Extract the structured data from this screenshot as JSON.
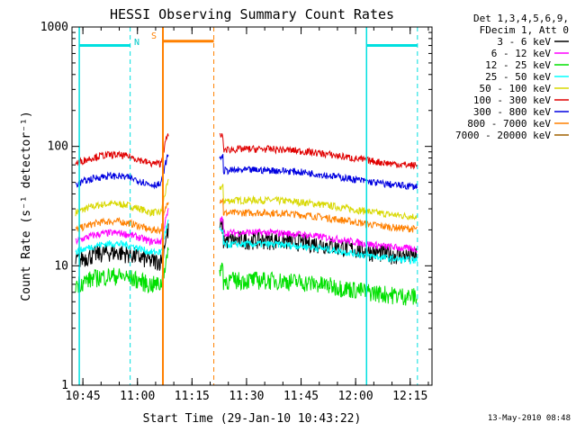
{
  "chart_data": {
    "type": "line",
    "title": "HESSI Observing Summary Count Rates",
    "xlabel": "Start Time (29-Jan-10 10:43:22)",
    "ylabel": "Count Rate (s⁻¹ detector⁻¹)",
    "yscale": "log",
    "xlim_minutes": [
      10.7,
      12.35
    ],
    "x_ticks": [
      "10:45",
      "11:00",
      "11:15",
      "11:30",
      "11:45",
      "12:00",
      "12:15"
    ],
    "ylim": [
      1,
      1000
    ],
    "y_ticks": [
      "1",
      "10",
      "100",
      "1000"
    ],
    "grid": false,
    "legend_position": "right",
    "legend_header": [
      "Det 1,3,4,5,6,9,",
      "FDecim 1, Att 0"
    ],
    "series": [
      {
        "name": "3 - 6 keV",
        "color": "#000000",
        "level_before": 11,
        "level_after": 13
      },
      {
        "name": "6 - 12 keV",
        "color": "#ff00ff",
        "level_before": 16,
        "level_after": 15
      },
      {
        "name": "12 - 25 keV",
        "color": "#00e000",
        "level_before": 7,
        "level_after": 6
      },
      {
        "name": "25 - 50 keV",
        "color": "#00ffff",
        "level_before": 13,
        "level_after": 12
      },
      {
        "name": "50 - 100 keV",
        "color": "#d8d800",
        "level_before": 28,
        "level_after": 28
      },
      {
        "name": "100 - 300 keV",
        "color": "#e00000",
        "level_before": 72,
        "level_after": 75
      },
      {
        "name": "300 - 800 keV",
        "color": "#0000e0",
        "level_before": 48,
        "level_after": 50
      },
      {
        "name": "800 - 7000 keV",
        "color": "#ff8000",
        "level_before": 20,
        "level_after": 22
      },
      {
        "name": "7000 - 20000 keV",
        "color": "#a06000",
        "level_before": null,
        "level_after": null
      }
    ],
    "markers": {
      "N_label": "N",
      "S_label": "S",
      "night_intervals": [
        [
          "10:44",
          "10:58"
        ],
        [
          "12:03",
          "12:17"
        ]
      ],
      "saa_interval": [
        "11:07",
        "11:21"
      ],
      "level": 700
    },
    "footer": "13-May-2010 08:48"
  }
}
